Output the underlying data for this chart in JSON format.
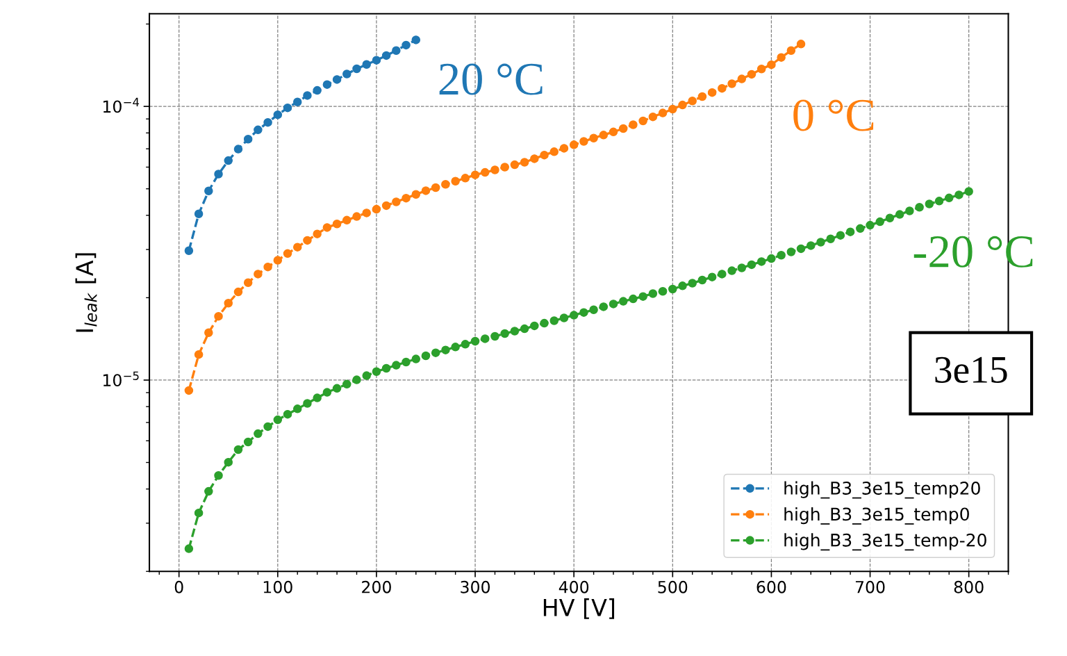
{
  "chart_data": {
    "type": "line",
    "xlabel": "HV [V]",
    "ylabel": "I$_{leak}$ [A]",
    "log": "y",
    "grid": true,
    "legend": "bottom right",
    "marker": "circle",
    "line_style": "dashed",
    "xlim": [
      -30,
      840
    ],
    "xticks": [
      0,
      100,
      200,
      300,
      400,
      500,
      600,
      700,
      800
    ],
    "ylim": [
      2e-06,
      0.000218
    ],
    "yticks": [
      {
        "value": 1e-05,
        "label": "10$^{−5}$"
      },
      {
        "value": 0.0001,
        "label": "10$^{−4}$"
      }
    ],
    "annotations": [
      "20 °C",
      "0 °C",
      "-20 °C",
      "3e15"
    ],
    "series": [
      {
        "name": "high_B3_3e15_temp20",
        "color": "#1f77b4",
        "x": [
          10,
          20,
          30,
          40,
          50,
          60,
          70,
          80,
          90,
          100,
          110,
          120,
          130,
          140,
          150,
          160,
          170,
          180,
          190,
          200,
          210,
          220,
          230,
          240
        ],
        "values": [
          2.97e-05,
          4.05e-05,
          4.91e-05,
          5.66e-05,
          6.34e-05,
          6.98e-05,
          7.59e-05,
          8.21e-05,
          8.74e-05,
          9.32e-05,
          9.88e-05,
          0.0001038,
          0.0001096,
          0.0001144,
          0.0001202,
          0.0001254,
          0.0001313,
          0.0001372,
          0.0001423,
          0.0001475,
          0.0001534,
          0.00016,
          0.0001675,
          0.000175
        ]
      },
      {
        "name": "high_B3_3e15_temp0",
        "color": "#ff7f0e",
        "x": [
          10,
          20,
          30,
          40,
          50,
          60,
          70,
          80,
          90,
          100,
          110,
          120,
          130,
          140,
          150,
          160,
          170,
          180,
          190,
          200,
          210,
          220,
          230,
          240,
          250,
          260,
          270,
          280,
          290,
          300,
          310,
          320,
          330,
          340,
          350,
          360,
          370,
          380,
          390,
          400,
          410,
          420,
          430,
          440,
          450,
          460,
          470,
          480,
          490,
          500,
          510,
          520,
          530,
          540,
          550,
          560,
          570,
          580,
          590,
          600,
          610,
          620,
          630
        ],
        "values": [
          9.16e-06,
          1.24e-05,
          1.49e-05,
          1.71e-05,
          1.91e-05,
          2.1e-05,
          2.27e-05,
          2.44e-05,
          2.59e-05,
          2.74e-05,
          2.9e-05,
          3.06e-05,
          3.24e-05,
          3.42e-05,
          3.61e-05,
          3.72e-05,
          3.84e-05,
          3.96e-05,
          4.08e-05,
          4.21e-05,
          4.34e-05,
          4.48e-05,
          4.62e-05,
          4.77e-05,
          4.92e-05,
          5.05e-05,
          5.19e-05,
          5.33e-05,
          5.47e-05,
          5.62e-05,
          5.74e-05,
          5.86e-05,
          6e-05,
          6.12e-05,
          6.25e-05,
          6.44e-05,
          6.64e-05,
          6.83e-05,
          7.03e-05,
          7.24e-05,
          7.45e-05,
          7.66e-05,
          7.86e-05,
          8.07e-05,
          8.3e-05,
          8.57e-05,
          8.85e-05,
          9.16e-05,
          9.46e-05,
          9.77e-05,
          0.0001012,
          0.0001047,
          0.0001086,
          0.0001124,
          0.0001164,
          0.000121,
          0.000126,
          0.000131,
          0.000137,
          0.000142,
          0.000151,
          0.00016,
          0.000169
        ]
      },
      {
        "name": "high_B3_3e15_temp-20",
        "color": "#2ca02c",
        "x": [
          10,
          20,
          30,
          40,
          50,
          60,
          70,
          80,
          90,
          100,
          110,
          120,
          130,
          140,
          150,
          160,
          170,
          180,
          190,
          200,
          210,
          220,
          230,
          240,
          250,
          260,
          270,
          280,
          290,
          300,
          310,
          320,
          330,
          340,
          350,
          360,
          370,
          380,
          390,
          400,
          410,
          420,
          430,
          440,
          450,
          460,
          470,
          480,
          490,
          500,
          510,
          520,
          530,
          540,
          550,
          560,
          570,
          580,
          590,
          600,
          610,
          620,
          630,
          640,
          650,
          660,
          670,
          680,
          690,
          700,
          710,
          720,
          730,
          740,
          750,
          760,
          770,
          780,
          790,
          800
        ],
        "values": [
          2.42e-06,
          3.27e-06,
          3.92e-06,
          4.48e-06,
          5.01e-06,
          5.57e-06,
          5.94e-06,
          6.37e-06,
          6.76e-06,
          7.16e-06,
          7.5e-06,
          7.85e-06,
          8.22e-06,
          8.61e-06,
          9.02e-06,
          9.33e-06,
          9.66e-06,
          1.002e-05,
          1.038e-05,
          1.074e-05,
          1.104e-05,
          1.133e-05,
          1.164e-05,
          1.194e-05,
          1.227e-05,
          1.258e-05,
          1.288e-05,
          1.321e-05,
          1.352e-05,
          1.387e-05,
          1.416e-05,
          1.445e-05,
          1.479e-05,
          1.51e-05,
          1.54e-05,
          1.578e-05,
          1.614e-05,
          1.648e-05,
          1.687e-05,
          1.726e-05,
          1.766e-05,
          1.807e-05,
          1.853e-05,
          1.897e-05,
          1.94e-05,
          1.98e-05,
          2.02e-05,
          2.07e-05,
          2.11e-05,
          2.15e-05,
          2.21e-05,
          2.26e-05,
          2.32e-05,
          2.38e-05,
          2.44e-05,
          2.51e-05,
          2.57e-05,
          2.64e-05,
          2.71e-05,
          2.78e-05,
          2.86e-05,
          2.94e-05,
          3.02e-05,
          3.1e-05,
          3.19e-05,
          3.28e-05,
          3.38e-05,
          3.48e-05,
          3.58e-05,
          3.68e-05,
          3.79e-05,
          3.91e-05,
          4.03e-05,
          4.15e-05,
          4.28e-05,
          4.4e-05,
          4.51e-05,
          4.63e-05,
          4.75e-05,
          4.89e-05
        ]
      }
    ]
  }
}
